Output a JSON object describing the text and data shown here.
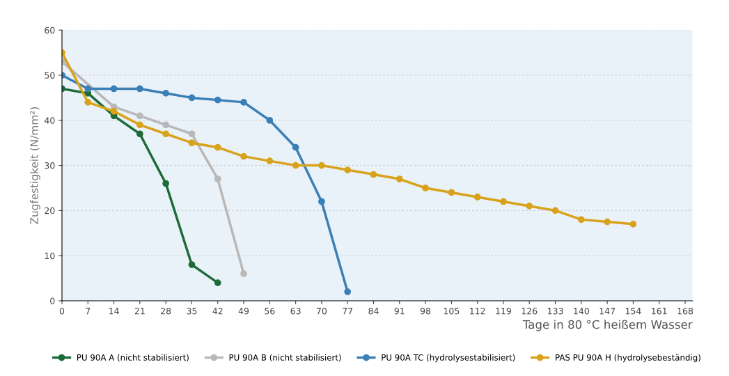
{
  "chart_data": {
    "type": "line",
    "ylabel": "Zugfestigkeit (N/mm²)",
    "xlabel": "Tage in 80 °C heißem Wasser",
    "xlim": [
      0,
      170
    ],
    "xticks": [
      0,
      7,
      14,
      21,
      28,
      35,
      42,
      49,
      56,
      63,
      70,
      77,
      84,
      91,
      98,
      105,
      112,
      119,
      126,
      133,
      140,
      147,
      154,
      161,
      168
    ],
    "ylim": [
      0,
      60
    ],
    "yticks": [
      0,
      10,
      20,
      30,
      40,
      50,
      60
    ],
    "grid": "y",
    "legend": "bottom",
    "marker": "circle",
    "line_style": "solid",
    "series": [
      {
        "name": "PU 90A A (nicht stabilisiert)",
        "color": "#1e6b3a",
        "x": [
          0,
          7,
          14,
          21,
          28,
          35,
          42
        ],
        "values": [
          47,
          46,
          41,
          37,
          26,
          8,
          4
        ]
      },
      {
        "name": "PU 90A B (nicht stabilisiert)",
        "color": "#b8b8b8",
        "x": [
          0,
          7,
          14,
          21,
          28,
          35,
          42,
          49
        ],
        "values": [
          53,
          null,
          43,
          41,
          39,
          37,
          27,
          6
        ]
      },
      {
        "name": "PU 90A TC (hydrolysestabilisiert)",
        "color": "#3a7fb5",
        "x": [
          0,
          7,
          14,
          21,
          28,
          35,
          42,
          49,
          56,
          63,
          70,
          77
        ],
        "values": [
          50,
          47,
          47,
          47,
          46,
          45,
          44.5,
          44,
          40,
          34,
          22,
          2
        ]
      },
      {
        "name": "PAS PU 90A H (hydrolysebeständig)",
        "color": "#d9a21b",
        "x": [
          0,
          7,
          14,
          21,
          28,
          35,
          42,
          49,
          56,
          63,
          70,
          77,
          84,
          91,
          98,
          105,
          112,
          119,
          126,
          133,
          140,
          147,
          154
        ],
        "values": [
          55,
          44,
          42,
          39,
          37,
          35,
          34,
          32,
          31,
          30,
          30,
          29,
          28,
          27,
          25,
          24,
          23,
          22,
          21,
          20,
          18,
          17.5,
          17
        ]
      }
    ]
  }
}
